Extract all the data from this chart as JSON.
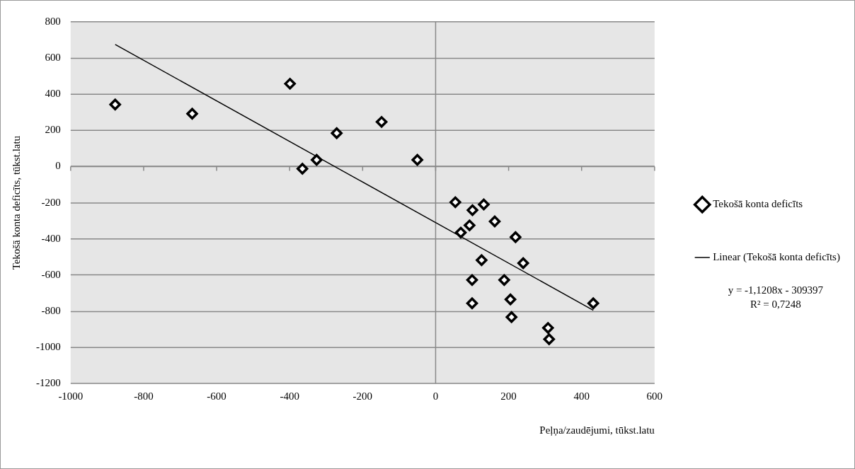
{
  "chart_data": {
    "type": "scatter",
    "xlabel": "Peļņa/zaudējumi, tūkst.latu",
    "ylabel": "Tekošā konta deficīts, tūkst.latu",
    "xlim": [
      -1000,
      600
    ],
    "xticks": [
      -1000,
      -800,
      -600,
      -400,
      -200,
      0,
      200,
      400,
      600
    ],
    "ylim": [
      -1200,
      800
    ],
    "yticks": [
      -1200,
      -1000,
      -800,
      -600,
      -400,
      -200,
      0,
      200,
      400,
      600,
      800
    ],
    "grid": "y",
    "ref_lines": [
      {
        "axis": "x",
        "value": 0,
        "color": "#888888"
      }
    ],
    "legend": "right",
    "marker": "diamond",
    "series": [
      {
        "name": "Tekošā konta deficīts",
        "type": "scatter",
        "color": "#000000",
        "x": [
          -878,
          -667,
          -399,
          -365,
          -326,
          -271,
          -148,
          -50,
          54,
          101,
          132,
          93,
          69,
          162,
          219,
          126,
          240,
          100,
          188,
          100,
          205,
          208,
          432,
          308,
          311
        ],
        "values": [
          343,
          292,
          458,
          -12,
          37,
          185,
          247,
          37,
          -197,
          -241,
          -209,
          -325,
          -365,
          -303,
          -390,
          -517,
          -534,
          -627,
          -627,
          -756,
          -734,
          -832,
          -756,
          -892,
          -954
        ]
      },
      {
        "name": "Linear (Tekošā konta deficīts)",
        "type": "line",
        "color": "#000000",
        "marker": "none",
        "x": [
          -878,
          432
        ],
        "values": [
          675,
          -794
        ]
      }
    ],
    "annotations": [
      "y = -1,1208x - 309397\nR² = 0,7248"
    ]
  }
}
